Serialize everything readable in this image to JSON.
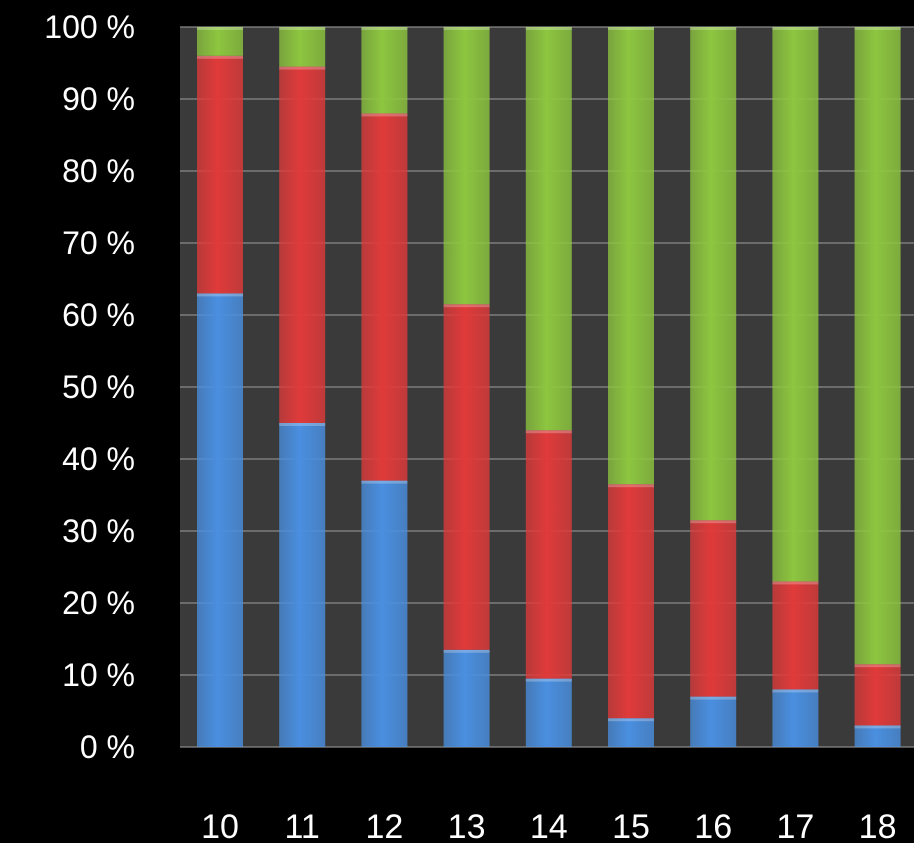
{
  "chart_data": {
    "type": "bar",
    "stacked": true,
    "normalized": true,
    "categories": [
      "10",
      "11",
      "12",
      "13",
      "14",
      "15",
      "16",
      "17",
      "18"
    ],
    "series": [
      {
        "color": "#4a8fe0",
        "values": [
          63,
          45,
          37,
          13.5,
          9.5,
          4,
          7,
          8,
          3
        ]
      },
      {
        "color": "#e03a3a",
        "values": [
          33,
          49.5,
          51,
          48,
          34.5,
          32.5,
          24.5,
          15,
          8.5
        ]
      },
      {
        "color": "#8dc63f",
        "values": [
          4,
          5.5,
          12,
          38.5,
          56,
          63.5,
          68.5,
          77,
          88.5
        ]
      }
    ],
    "yticks": [
      "0 %",
      "10 %",
      "20 %",
      "30 %",
      "40 %",
      "50 %",
      "60 %",
      "70 %",
      "80 %",
      "90 %",
      "100 %"
    ],
    "ylim": [
      0,
      100
    ],
    "grid": true,
    "plot_background": "#3a3a3a",
    "grid_color": "#8a8a8a",
    "legend": "none"
  }
}
